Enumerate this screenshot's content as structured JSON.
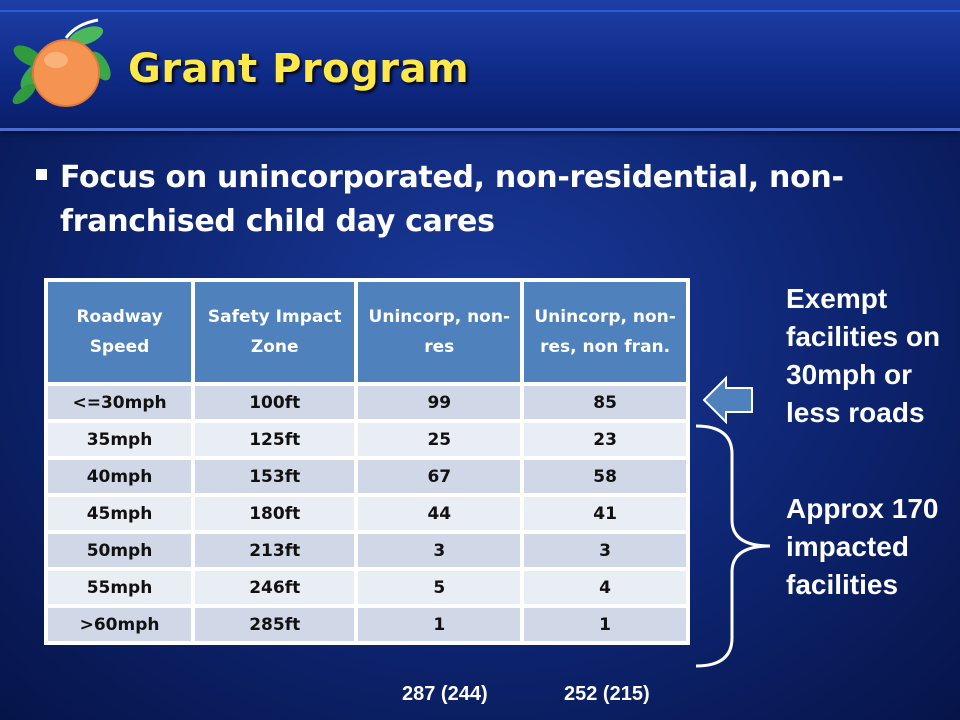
{
  "header": {
    "title": "Grant Program",
    "logo_icon": "orange-fruit-icon"
  },
  "bullet": {
    "text": "Focus on unincorporated, non-residential, non-franchised child day cares"
  },
  "table": {
    "headers": [
      "Roadway Speed",
      "Safety Impact Zone",
      "Unincorp, non-res",
      "Unincorp, non-res, non fran."
    ],
    "rows": [
      [
        "<=30mph",
        "100ft",
        "99",
        "85"
      ],
      [
        "35mph",
        "125ft",
        "25",
        "23"
      ],
      [
        "40mph",
        "153ft",
        "67",
        "58"
      ],
      [
        "45mph",
        "180ft",
        "44",
        "41"
      ],
      [
        "50mph",
        "213ft",
        "3",
        "3"
      ],
      [
        "55mph",
        "246ft",
        "5",
        "4"
      ],
      [
        ">60mph",
        "285ft",
        "1",
        "1"
      ]
    ]
  },
  "totals": {
    "col3": "287 (244)",
    "col4": "252 (215)"
  },
  "side": {
    "exempt": "Exempt facilities on 30mph or less roads",
    "approx": "Approx 170 impacted facilities",
    "arrow_icon": "left-arrow-icon",
    "brace_icon": "curly-brace-icon"
  },
  "colors": {
    "title": "#ffe94a",
    "header_cell": "#4f81bd",
    "row_odd": "#d0d8e8",
    "row_even": "#e9edf4"
  }
}
